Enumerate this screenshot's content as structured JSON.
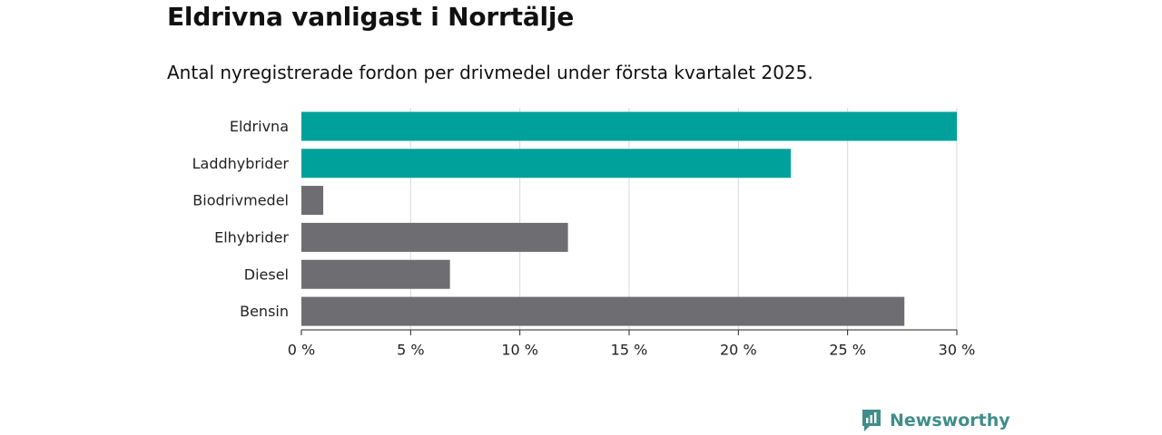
{
  "title": "Eldrivna vanligast i Norrtälje",
  "subtitle": "Antal nyregistrerade fordon per drivmedel under första kvartalet 2025.",
  "brand": {
    "name": "Newsworthy",
    "icon": "newsworthy-logo-icon",
    "color": "#3f8e8a"
  },
  "chart_data": {
    "type": "bar",
    "orientation": "horizontal",
    "categories": [
      "Eldrivna",
      "Laddhybrider",
      "Biodrivmedel",
      "Elhybrider",
      "Diesel",
      "Bensin"
    ],
    "values": [
      30.0,
      22.4,
      1.0,
      12.2,
      6.8,
      27.6
    ],
    "colors": [
      "#00a19a",
      "#00a19a",
      "#6e6d72",
      "#6e6d72",
      "#6e6d72",
      "#6e6d72"
    ],
    "xlim": [
      0,
      30
    ],
    "xticks": [
      0,
      5,
      10,
      15,
      20,
      25,
      30
    ],
    "xtick_labels": [
      "0 %",
      "5 %",
      "10 %",
      "15 %",
      "20 %",
      "25 %",
      "30 %"
    ],
    "xlabel": "",
    "ylabel": "",
    "grid": true,
    "legend": "none"
  }
}
